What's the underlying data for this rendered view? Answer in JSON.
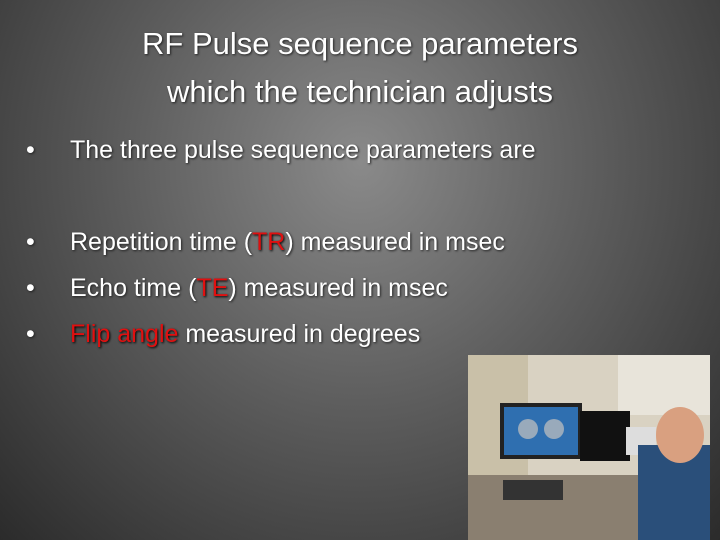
{
  "slide": {
    "title": [
      "RF Pulse sequence parameters",
      "which the technician adjusts"
    ],
    "intro": "The three pulse sequence parameters are",
    "items": [
      {
        "parts": [
          "Repetition time (",
          "TR",
          ") measured in msec"
        ]
      },
      {
        "parts": [
          "Echo time (",
          "TE",
          ") measured in msec"
        ]
      },
      {
        "parts": [
          "Flip angle",
          " measured in degrees"
        ]
      }
    ]
  }
}
